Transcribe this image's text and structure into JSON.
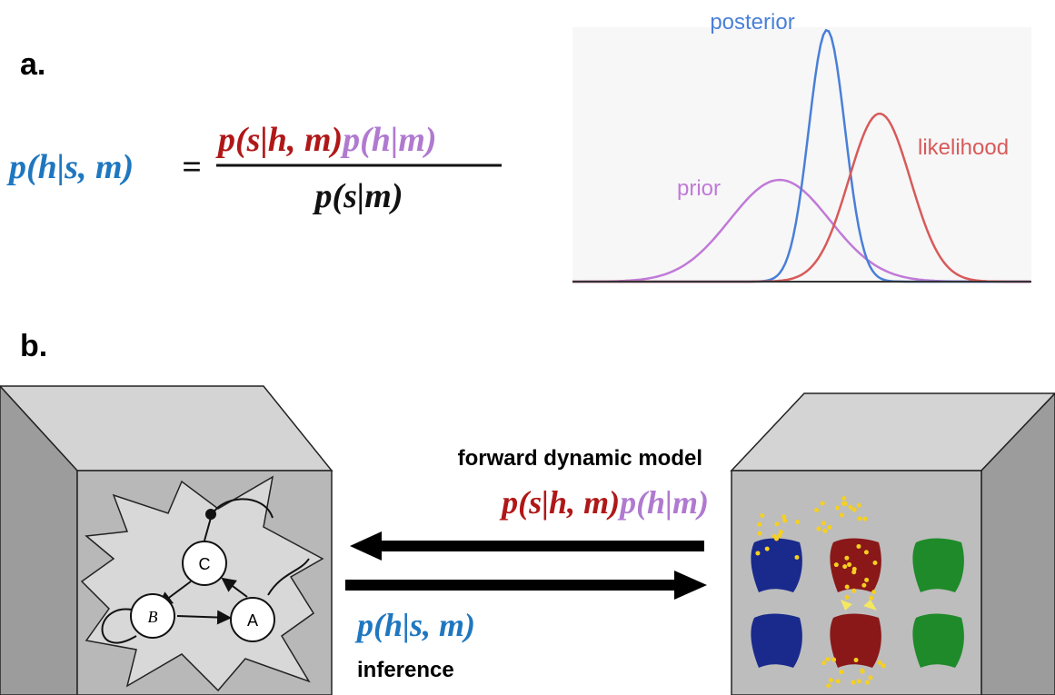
{
  "panel_a": {
    "label": "a.",
    "equation": {
      "lhs": "p(h|s, m)",
      "equals": "=",
      "numerator_likelihood": "p(s|h, m)",
      "numerator_prior": "p(h|m)",
      "denominator": "p(s|m)"
    },
    "curves": {
      "posterior": "posterior",
      "likelihood": "likelihood",
      "prior": "prior"
    }
  },
  "panel_b": {
    "label": "b.",
    "forward_label": "forward dynamic model",
    "forward_likelihood": "p(s|h, m)",
    "forward_prior": "p(h|m)",
    "inference_formula": "p(h|s, m)",
    "inference_label": "inference",
    "nodes": [
      "C",
      "B",
      "A"
    ]
  }
}
